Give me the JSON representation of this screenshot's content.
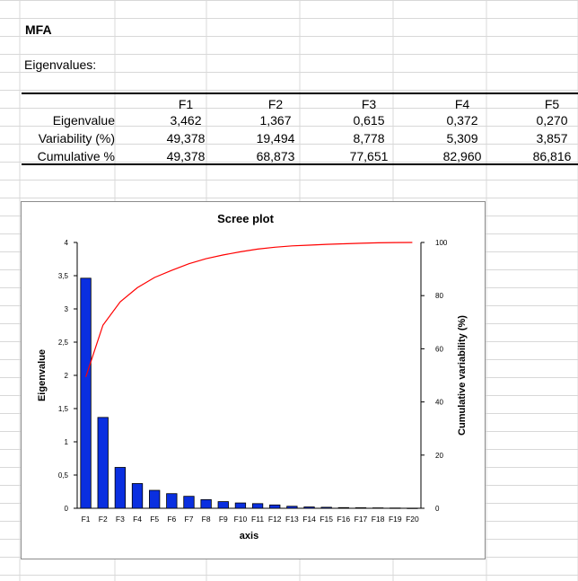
{
  "sheet": {
    "title": "MFA",
    "eigen_heading": "Eigenvalues:"
  },
  "table": {
    "columns": [
      "F1",
      "F2",
      "F3",
      "F4",
      "F5"
    ],
    "rows": [
      {
        "label": "Eigenvalue",
        "values": [
          "3,462",
          "1,367",
          "0,615",
          "0,372",
          "0,270"
        ]
      },
      {
        "label": "Variability (%)",
        "values": [
          "49,378",
          "19,494",
          "8,778",
          "5,309",
          "3,857"
        ]
      },
      {
        "label": "Cumulative %",
        "values": [
          "49,378",
          "68,873",
          "77,651",
          "82,960",
          "86,816"
        ]
      }
    ]
  },
  "chart_data": {
    "type": "bar",
    "title": "Scree plot",
    "xlabel": "axis",
    "ylabel": "Eigenvalue",
    "y2label": "Cumulative variability (%)",
    "categories": [
      "F1",
      "F2",
      "F3",
      "F4",
      "F5",
      "F6",
      "F7",
      "F8",
      "F9",
      "F10",
      "F11",
      "F12",
      "F13",
      "F14",
      "F15",
      "F16",
      "F17",
      "F18",
      "F19",
      "F20"
    ],
    "series": [
      {
        "type": "bar",
        "axis": "left",
        "color": "#0a2fe0",
        "values": [
          3.462,
          1.367,
          0.615,
          0.372,
          0.27,
          0.22,
          0.18,
          0.13,
          0.1,
          0.08,
          0.07,
          0.05,
          0.03,
          0.02,
          0.015,
          0.01,
          0.008,
          0.006,
          0.004,
          0.002
        ]
      },
      {
        "type": "line",
        "axis": "right",
        "color": "#ff0000",
        "values": [
          49.378,
          68.873,
          77.651,
          82.96,
          86.816,
          89.5,
          92.0,
          93.9,
          95.3,
          96.5,
          97.5,
          98.2,
          98.7,
          99.0,
          99.3,
          99.5,
          99.7,
          99.85,
          99.95,
          100
        ]
      }
    ],
    "ylim": [
      0,
      4
    ],
    "yticks": [
      "0",
      "0,5",
      "1",
      "1,5",
      "2",
      "2,5",
      "3",
      "3,5",
      "4"
    ],
    "y2lim": [
      0,
      100
    ],
    "y2ticks": [
      "0",
      "20",
      "40",
      "60",
      "80",
      "100"
    ],
    "grid": false,
    "legend": "none"
  }
}
